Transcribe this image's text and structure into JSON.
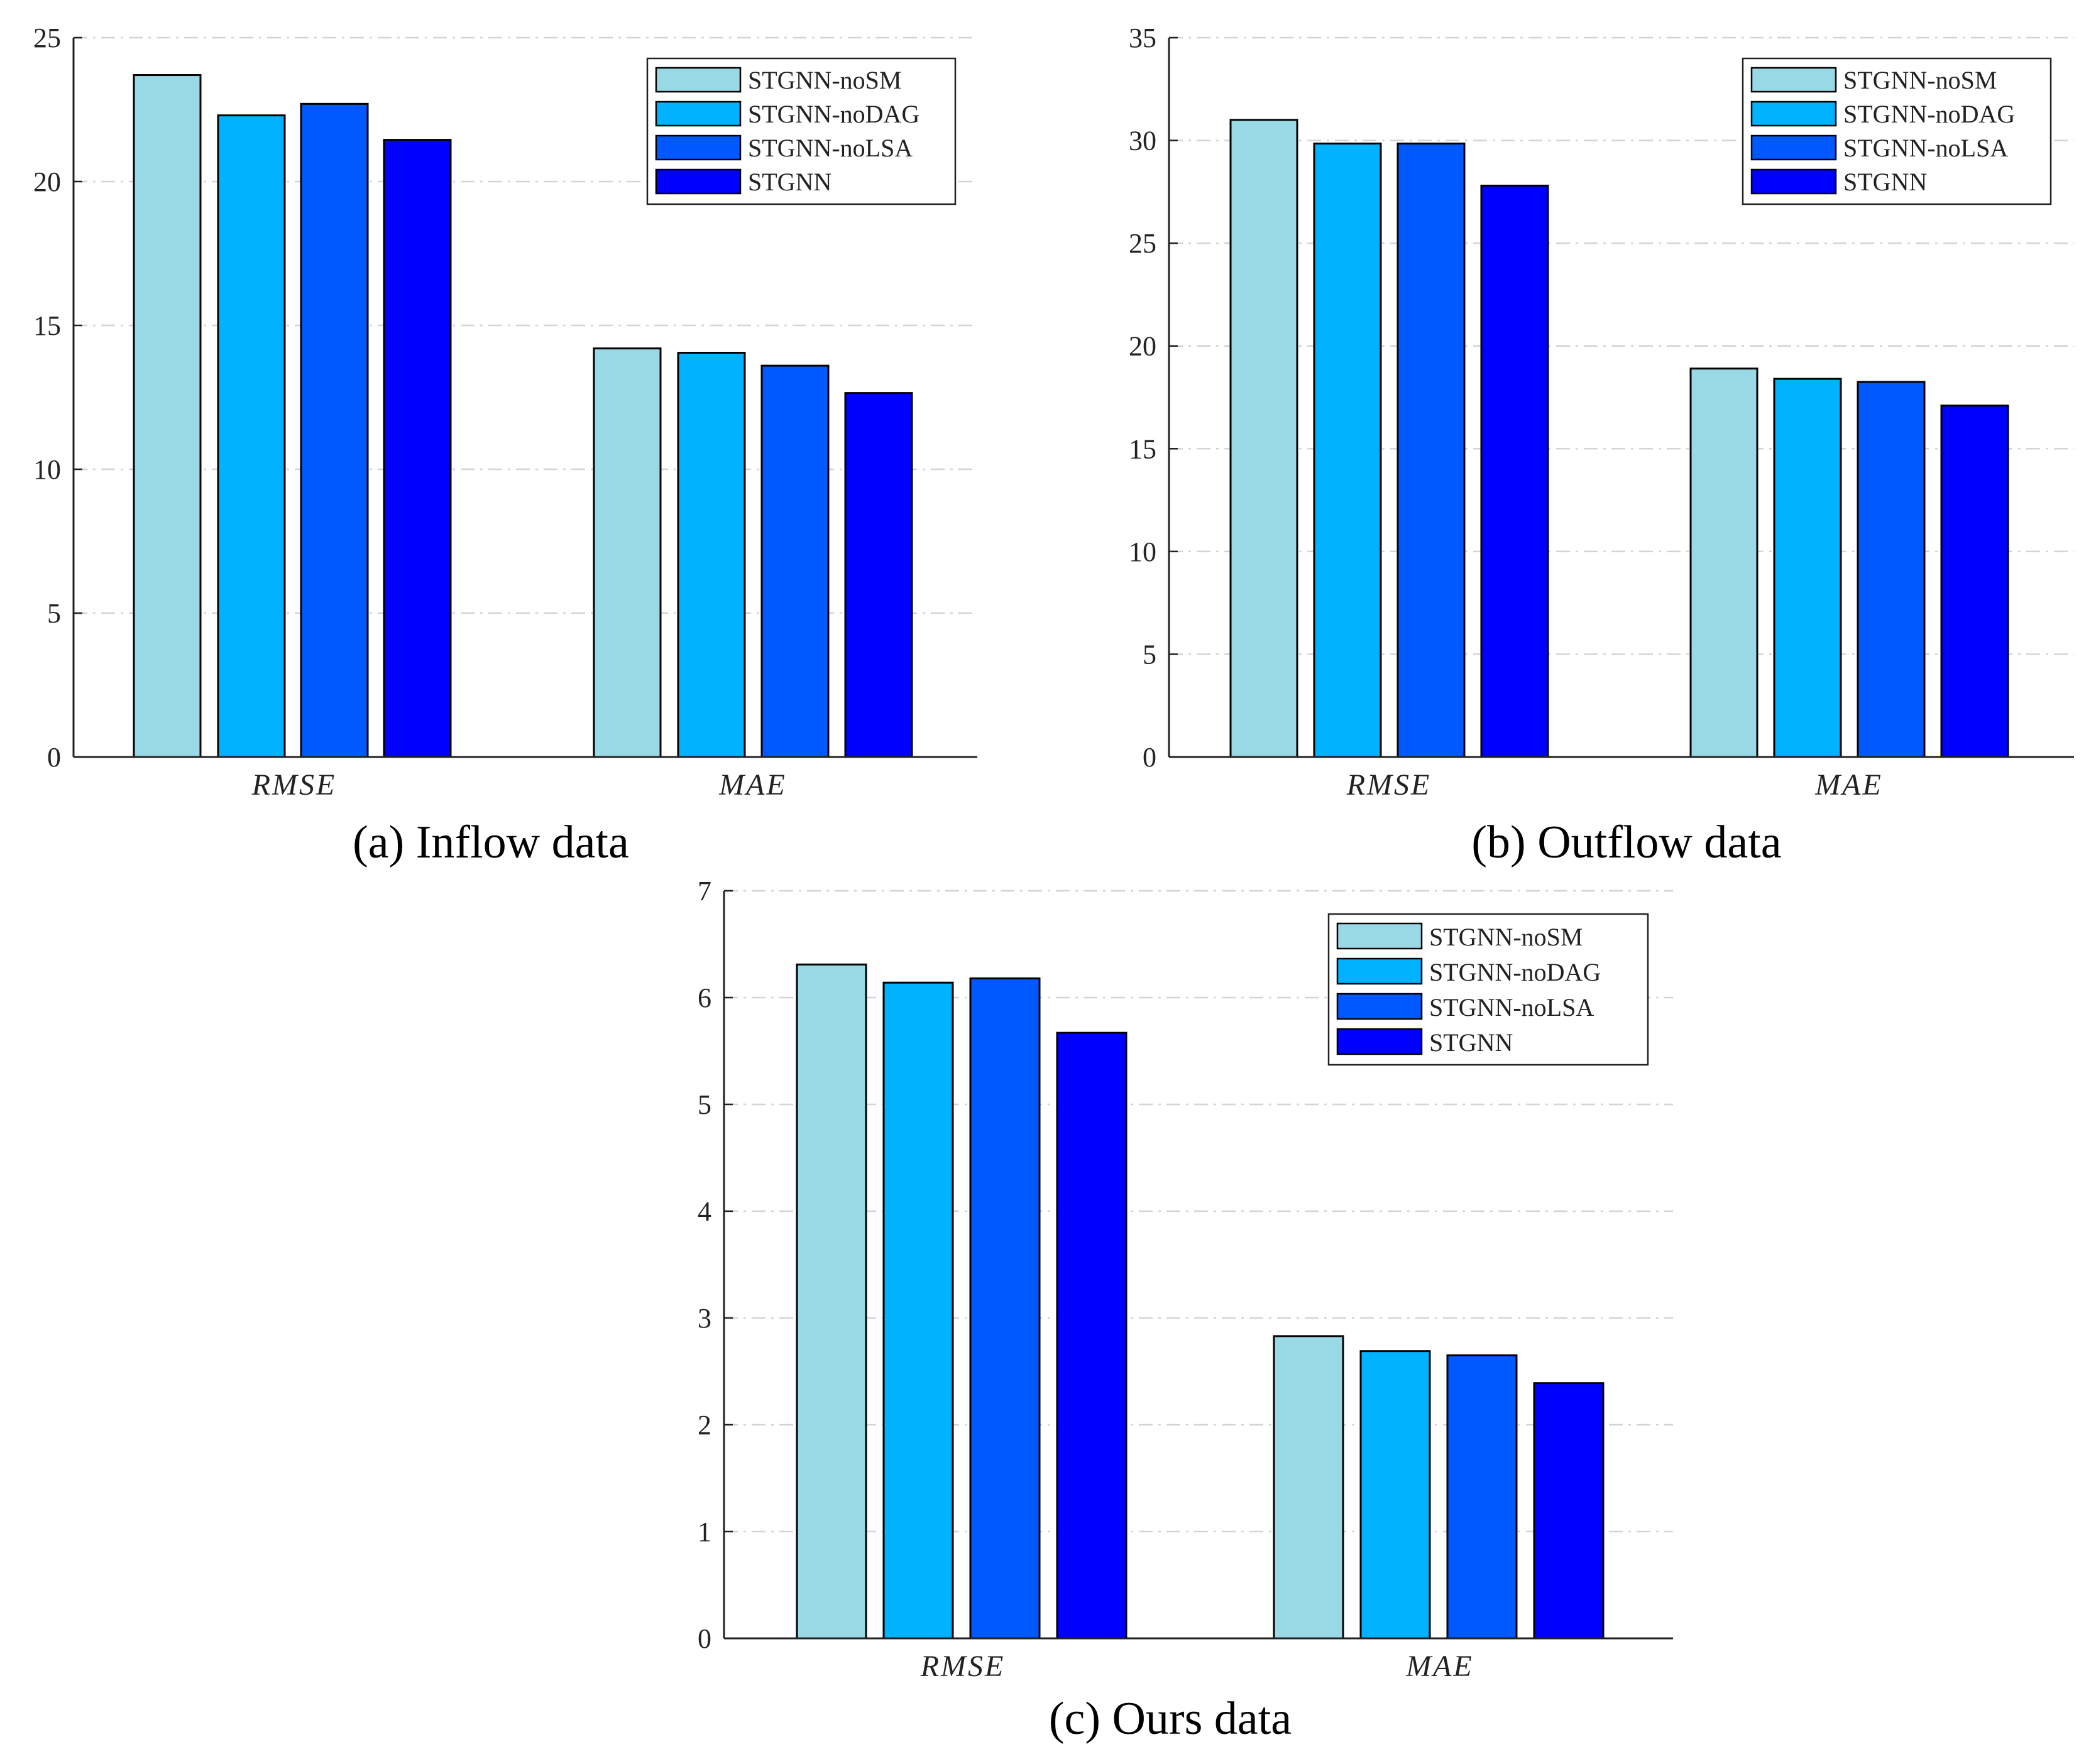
{
  "colors": {
    "STGNN-noSM": "#99d9e6",
    "STGNN-noDAG": "#00b2ff",
    "STGNN-noLSA": "#0059ff",
    "STGNN": "#0000ff"
  },
  "chart_data": [
    {
      "id": "inflow",
      "type": "bar",
      "caption": "(a) Inflow data",
      "categories": [
        "RMSE",
        "MAE"
      ],
      "series": [
        {
          "name": "STGNN-noSM",
          "values": [
            23.7,
            14.2
          ]
        },
        {
          "name": "STGNN-noDAG",
          "values": [
            22.3,
            14.05
          ]
        },
        {
          "name": "STGNN-noLSA",
          "values": [
            22.7,
            13.6
          ]
        },
        {
          "name": "STGNN",
          "values": [
            21.45,
            12.65
          ]
        }
      ],
      "ylim": [
        0,
        25
      ],
      "yticks": [
        0,
        5,
        10,
        15,
        20,
        25
      ],
      "grid": true,
      "legend": "top-right"
    },
    {
      "id": "outflow",
      "type": "bar",
      "caption": "(b) Outflow data",
      "categories": [
        "RMSE",
        "MAE"
      ],
      "series": [
        {
          "name": "STGNN-noSM",
          "values": [
            31.0,
            18.9
          ]
        },
        {
          "name": "STGNN-noDAG",
          "values": [
            29.85,
            18.4
          ]
        },
        {
          "name": "STGNN-noLSA",
          "values": [
            29.85,
            18.25
          ]
        },
        {
          "name": "STGNN",
          "values": [
            27.8,
            17.1
          ]
        }
      ],
      "ylim": [
        0,
        35
      ],
      "yticks": [
        0,
        5,
        10,
        15,
        20,
        25,
        30,
        35
      ],
      "grid": true,
      "legend": "top-right"
    },
    {
      "id": "ours",
      "type": "bar",
      "caption": "(c) Ours data",
      "categories": [
        "RMSE",
        "MAE"
      ],
      "series": [
        {
          "name": "STGNN-noSM",
          "values": [
            6.31,
            2.83
          ]
        },
        {
          "name": "STGNN-noDAG",
          "values": [
            6.14,
            2.69
          ]
        },
        {
          "name": "STGNN-noLSA",
          "values": [
            6.18,
            2.65
          ]
        },
        {
          "name": "STGNN",
          "values": [
            5.67,
            2.39
          ]
        }
      ],
      "ylim": [
        0,
        7
      ],
      "yticks": [
        0,
        1,
        2,
        3,
        4,
        5,
        6,
        7
      ],
      "grid": true,
      "legend": "top-right"
    }
  ]
}
